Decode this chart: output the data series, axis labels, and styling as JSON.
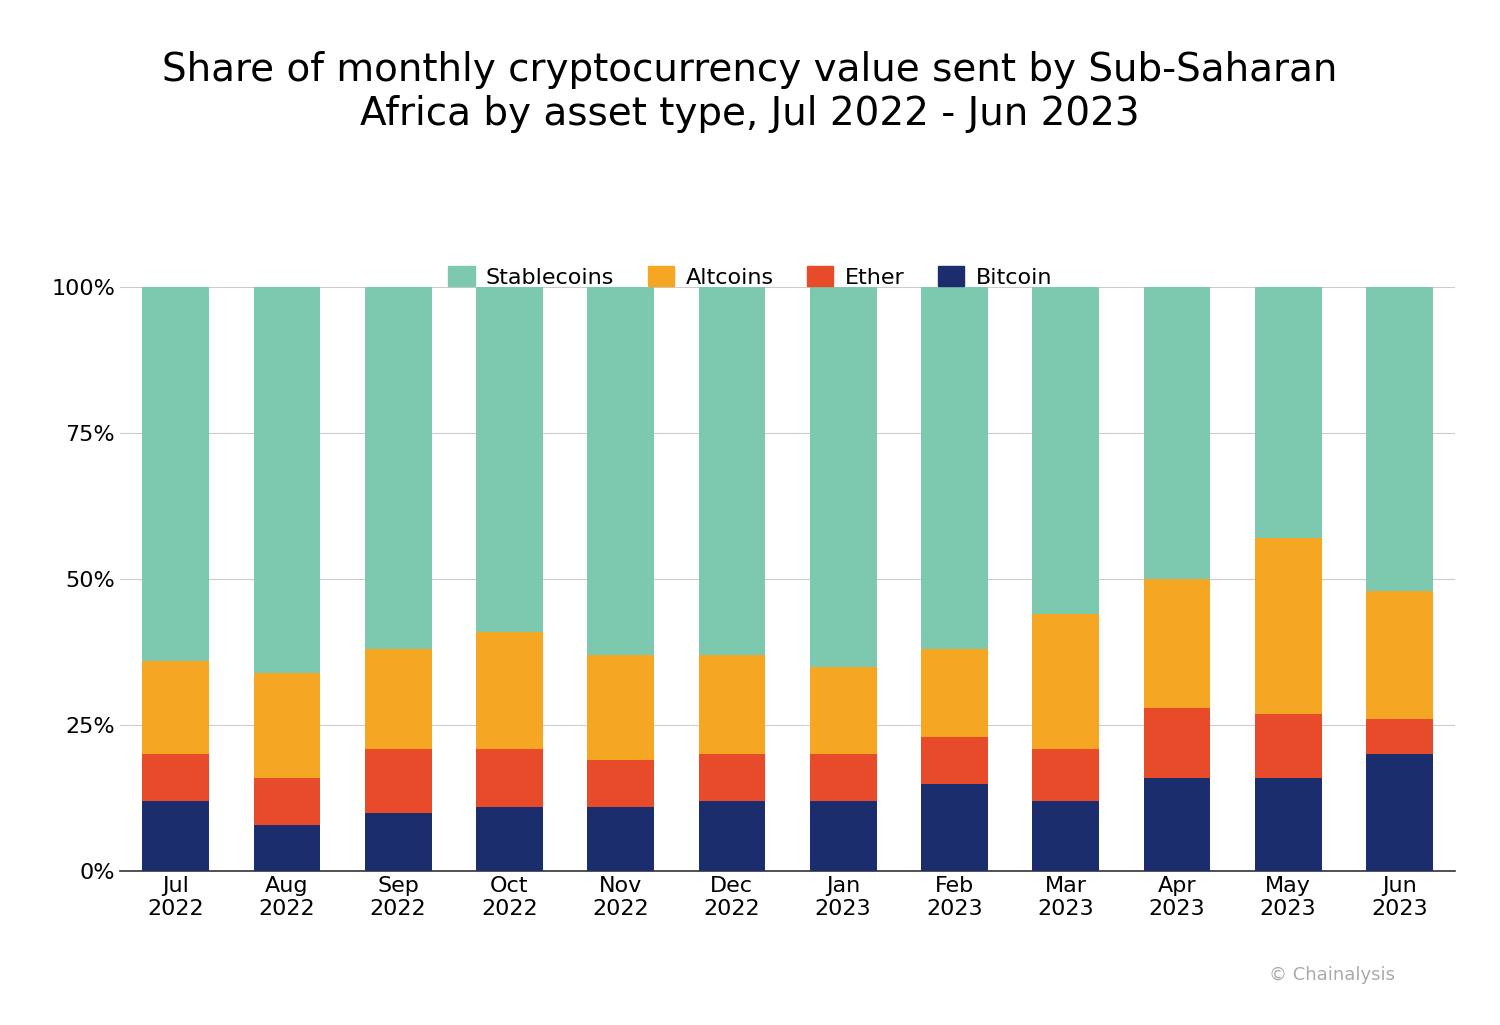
{
  "title": "Share of monthly cryptocurrency value sent by Sub-Saharan\nAfrica by asset type, Jul 2022 - Jun 2023",
  "categories": [
    "Jul\n2022",
    "Aug\n2022",
    "Sep\n2022",
    "Oct\n2022",
    "Nov\n2022",
    "Dec\n2022",
    "Jan\n2023",
    "Feb\n2023",
    "Mar\n2023",
    "Apr\n2023",
    "May\n2023",
    "Jun\n2023"
  ],
  "bitcoin": [
    12,
    8,
    10,
    11,
    11,
    12,
    12,
    15,
    12,
    16,
    16,
    20
  ],
  "ether": [
    8,
    8,
    11,
    10,
    8,
    8,
    8,
    8,
    9,
    12,
    11,
    6
  ],
  "altcoins": [
    16,
    18,
    17,
    20,
    18,
    17,
    15,
    15,
    23,
    22,
    30,
    22
  ],
  "stablecoins": [
    64,
    66,
    62,
    59,
    63,
    63,
    65,
    62,
    56,
    50,
    43,
    52
  ],
  "colors": {
    "stablecoins": "#7DC9B0",
    "altcoins": "#F5A623",
    "ether": "#E84B2A",
    "bitcoin": "#1C2D6E"
  },
  "legend_labels": [
    "Stablecoins",
    "Altcoins",
    "Ether",
    "Bitcoin"
  ],
  "ylabel_ticks": [
    "0%",
    "25%",
    "50%",
    "75%",
    "100%"
  ],
  "yticks": [
    0,
    25,
    50,
    75,
    100
  ],
  "watermark": "© Chainalysis",
  "background_color": "#ffffff",
  "title_fontsize": 28,
  "tick_fontsize": 16,
  "legend_fontsize": 16
}
